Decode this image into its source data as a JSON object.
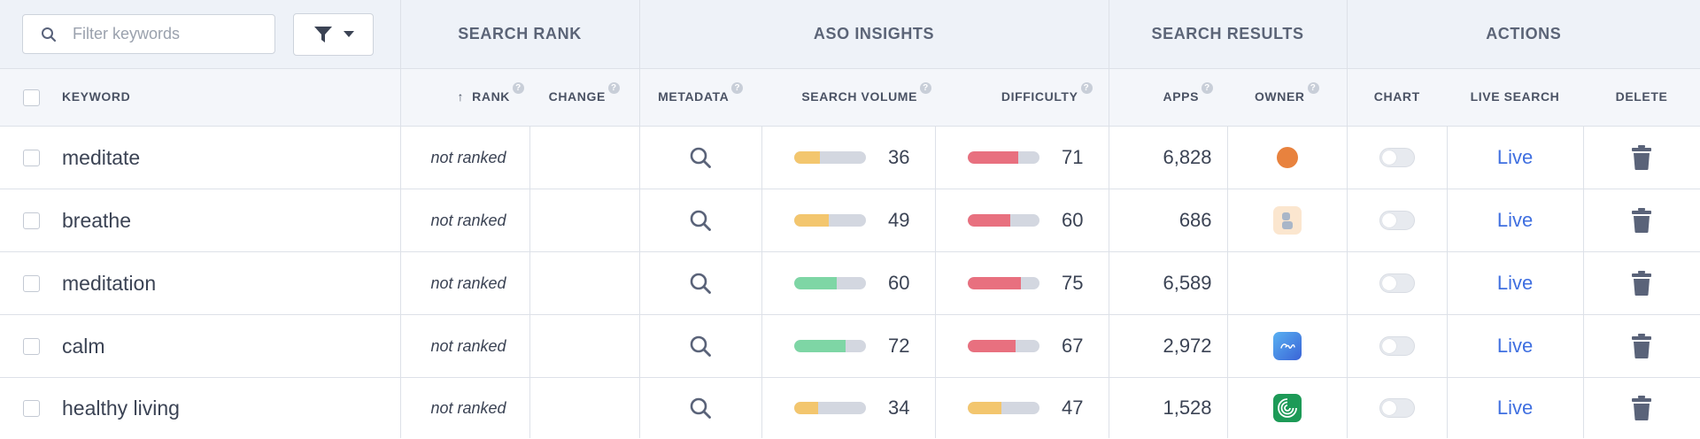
{
  "toolbar": {
    "filter_placeholder": "Filter keywords"
  },
  "groups": {
    "search_rank": "SEARCH RANK",
    "aso_insights": "ASO INSIGHTS",
    "search_results": "SEARCH RESULTS",
    "actions": "ACTIONS"
  },
  "columns": {
    "keyword": "KEYWORD",
    "rank": "RANK",
    "change": "CHANGE",
    "metadata": "METADATA",
    "search_volume": "SEARCH VOLUME",
    "difficulty": "DIFFICULTY",
    "apps": "APPS",
    "owner": "OWNER",
    "chart": "CHART",
    "live_search": "LIVE SEARCH",
    "delete": "DELETE",
    "rank_sort_indicator": "↑",
    "help_glyph": "?"
  },
  "colors": {
    "bar_yellow": "#f3c66e",
    "bar_green": "#7ed6a5",
    "bar_red": "#e8707f",
    "bar_track": "#d3d7e0",
    "link_blue": "#3f6fe0"
  },
  "rows": [
    {
      "keyword": "meditate",
      "rank": "not ranked",
      "change": "",
      "metadata_icon": "search-icon",
      "search_volume": "36",
      "search_volume_color": "#f3c66e",
      "difficulty": "71",
      "difficulty_color": "#e8707f",
      "apps": "6,828",
      "owner_icon": "orange-circle-app-icon",
      "live": "Live"
    },
    {
      "keyword": "breathe",
      "rank": "not ranked",
      "change": "",
      "metadata_icon": "search-icon",
      "search_volume": "49",
      "search_volume_color": "#f3c66e",
      "difficulty": "60",
      "difficulty_color": "#e8707f",
      "apps": "686",
      "owner_icon": "breathe-app-icon",
      "live": "Live"
    },
    {
      "keyword": "meditation",
      "rank": "not ranked",
      "change": "",
      "metadata_icon": "search-icon",
      "search_volume": "60",
      "search_volume_color": "#7ed6a5",
      "difficulty": "75",
      "difficulty_color": "#e8707f",
      "apps": "6,589",
      "owner_icon": "",
      "live": "Live"
    },
    {
      "keyword": "calm",
      "rank": "not ranked",
      "change": "",
      "metadata_icon": "search-icon",
      "search_volume": "72",
      "search_volume_color": "#7ed6a5",
      "difficulty": "67",
      "difficulty_color": "#e8707f",
      "apps": "2,972",
      "owner_icon": "calm-app-icon",
      "live": "Live"
    },
    {
      "keyword": "healthy living",
      "rank": "not ranked",
      "change": "",
      "metadata_icon": "search-icon",
      "search_volume": "34",
      "search_volume_color": "#f3c66e",
      "difficulty": "47",
      "difficulty_color": "#f3c66e",
      "apps": "1,528",
      "owner_icon": "green-spiral-app-icon",
      "live": "Live"
    }
  ]
}
